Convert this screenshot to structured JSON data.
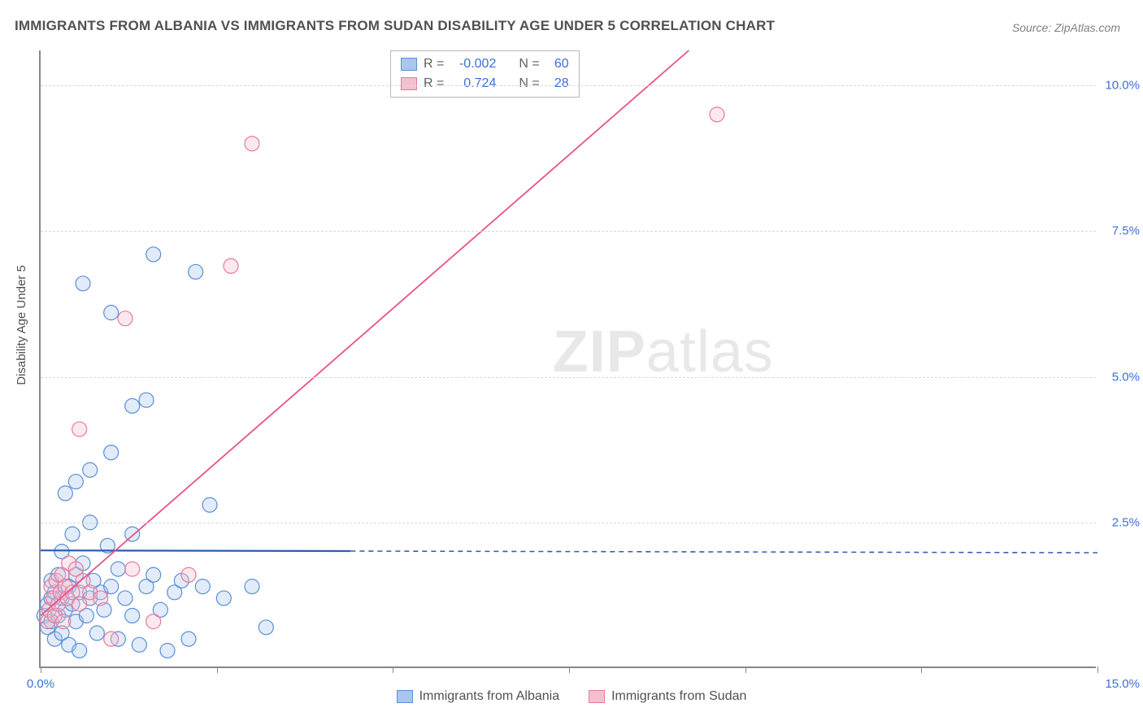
{
  "title": "IMMIGRANTS FROM ALBANIA VS IMMIGRANTS FROM SUDAN DISABILITY AGE UNDER 5 CORRELATION CHART",
  "source": "Source: ZipAtlas.com",
  "watermark_zip": "ZIP",
  "watermark_atlas": "atlas",
  "y_axis_title": "Disability Age Under 5",
  "chart": {
    "type": "scatter",
    "plot_bg": "#ffffff",
    "grid_color": "#d8d8d8",
    "axis_color": "#888888",
    "xlim": [
      0,
      15
    ],
    "ylim": [
      0,
      10.6
    ],
    "x_ticks": [
      0,
      2.5,
      5,
      7.5,
      10,
      12.5,
      15
    ],
    "x_tick_labels": [
      "0.0%",
      "",
      "",
      "",
      "",
      "",
      "15.0%"
    ],
    "y_ticks": [
      2.5,
      5.0,
      7.5,
      10.0
    ],
    "y_tick_labels": [
      "2.5%",
      "5.0%",
      "7.5%",
      "10.0%"
    ],
    "marker_radius": 9,
    "marker_fill_opacity": 0.35,
    "marker_stroke_width": 1.2,
    "series": [
      {
        "name": "Immigrants from Albania",
        "color_fill": "#a9c6ef",
        "color_stroke": "#5b8fd6",
        "r_label": "R = ",
        "r_value": "-0.002",
        "n_label": "N = ",
        "n_value": "60",
        "trend": {
          "x1": 0,
          "y1": 2.02,
          "x2": 15,
          "y2": 1.98,
          "solid_until_x": 4.4,
          "stroke": "#2d5db0",
          "width": 2.2
        },
        "points": [
          [
            0.05,
            0.9
          ],
          [
            0.1,
            1.1
          ],
          [
            0.1,
            0.7
          ],
          [
            0.15,
            1.2
          ],
          [
            0.15,
            0.8
          ],
          [
            0.15,
            1.5
          ],
          [
            0.2,
            0.5
          ],
          [
            0.2,
            1.3
          ],
          [
            0.25,
            0.9
          ],
          [
            0.25,
            1.6
          ],
          [
            0.3,
            0.6
          ],
          [
            0.3,
            1.2
          ],
          [
            0.3,
            2.0
          ],
          [
            0.35,
            1.0
          ],
          [
            0.4,
            0.4
          ],
          [
            0.4,
            1.4
          ],
          [
            0.45,
            1.1
          ],
          [
            0.45,
            2.3
          ],
          [
            0.5,
            0.8
          ],
          [
            0.5,
            1.6
          ],
          [
            0.55,
            0.3
          ],
          [
            0.55,
            1.3
          ],
          [
            0.6,
            1.8
          ],
          [
            0.65,
            0.9
          ],
          [
            0.7,
            2.5
          ],
          [
            0.7,
            1.2
          ],
          [
            0.75,
            1.5
          ],
          [
            0.8,
            0.6
          ],
          [
            0.85,
            1.3
          ],
          [
            0.9,
            1.0
          ],
          [
            0.95,
            2.1
          ],
          [
            1.0,
            1.4
          ],
          [
            1.1,
            0.5
          ],
          [
            1.1,
            1.7
          ],
          [
            1.2,
            1.2
          ],
          [
            1.3,
            2.3
          ],
          [
            1.3,
            0.9
          ],
          [
            1.4,
            0.4
          ],
          [
            1.5,
            1.4
          ],
          [
            1.6,
            1.6
          ],
          [
            1.7,
            1.0
          ],
          [
            1.8,
            0.3
          ],
          [
            1.9,
            1.3
          ],
          [
            2.0,
            1.5
          ],
          [
            2.1,
            0.5
          ],
          [
            2.3,
            1.4
          ],
          [
            2.4,
            2.8
          ],
          [
            2.6,
            1.2
          ],
          [
            3.0,
            1.4
          ],
          [
            3.2,
            0.7
          ],
          [
            0.35,
            3.0
          ],
          [
            0.5,
            3.2
          ],
          [
            0.7,
            3.4
          ],
          [
            1.0,
            3.7
          ],
          [
            1.3,
            4.5
          ],
          [
            1.5,
            4.6
          ],
          [
            1.0,
            6.1
          ],
          [
            1.6,
            7.1
          ],
          [
            0.6,
            6.6
          ],
          [
            2.2,
            6.8
          ]
        ]
      },
      {
        "name": "Immigrants from Sudan",
        "color_fill": "#f4c0ce",
        "color_stroke": "#e77a9c",
        "r_label": "R = ",
        "r_value": " 0.724",
        "n_label": "N = ",
        "n_value": "28",
        "trend": {
          "x1": 0,
          "y1": 0.9,
          "x2": 9.2,
          "y2": 10.6,
          "solid_until_x": 9.2,
          "stroke": "#e8518a",
          "width": 1.8
        },
        "points": [
          [
            0.1,
            0.8
          ],
          [
            0.12,
            1.0
          ],
          [
            0.15,
            1.4
          ],
          [
            0.18,
            1.2
          ],
          [
            0.2,
            0.9
          ],
          [
            0.22,
            1.5
          ],
          [
            0.25,
            1.1
          ],
          [
            0.28,
            1.3
          ],
          [
            0.3,
            1.6
          ],
          [
            0.32,
            0.8
          ],
          [
            0.35,
            1.4
          ],
          [
            0.38,
            1.2
          ],
          [
            0.4,
            1.8
          ],
          [
            0.45,
            1.3
          ],
          [
            0.5,
            1.7
          ],
          [
            0.55,
            1.1
          ],
          [
            0.6,
            1.5
          ],
          [
            0.7,
            1.3
          ],
          [
            0.85,
            1.2
          ],
          [
            1.0,
            0.5
          ],
          [
            1.3,
            1.7
          ],
          [
            1.6,
            0.8
          ],
          [
            2.1,
            1.6
          ],
          [
            0.55,
            4.1
          ],
          [
            1.2,
            6.0
          ],
          [
            2.7,
            6.9
          ],
          [
            3.0,
            9.0
          ],
          [
            9.6,
            9.5
          ]
        ]
      }
    ]
  },
  "bottom_legend": {
    "items": [
      {
        "label": "Immigrants from Albania",
        "fill": "#a9c6ef",
        "stroke": "#5b8fd6"
      },
      {
        "label": "Immigrants from Sudan",
        "fill": "#f4c0ce",
        "stroke": "#e77a9c"
      }
    ]
  }
}
